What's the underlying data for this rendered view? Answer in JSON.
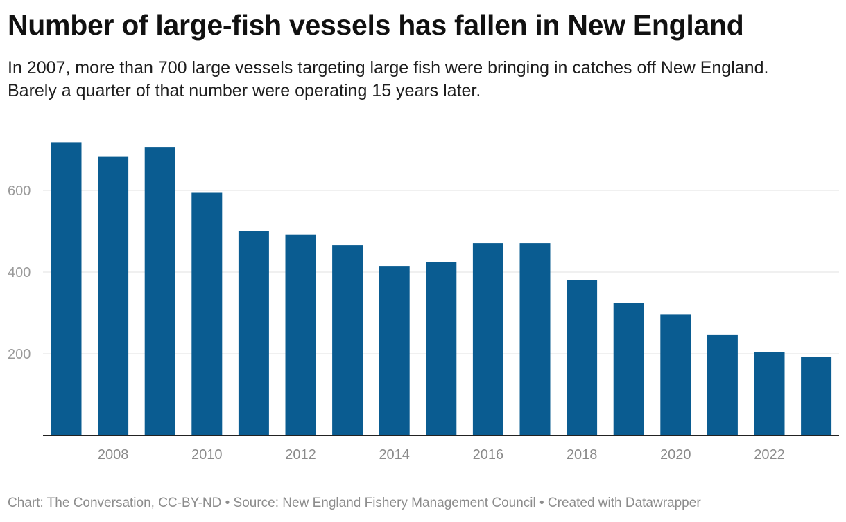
{
  "header": {
    "title": "Number of large-fish vessels has fallen in New England",
    "subtitle": "In 2007, more than 700 large vessels targeting large fish were bringing in catches off New England. Barely a quarter of that number were operating 15 years later."
  },
  "footer": {
    "credit": "Chart: The Conversation, CC-BY-ND • Source: New England Fishery Management Council • Created with Datawrapper"
  },
  "chart_data": {
    "type": "bar",
    "categories": [
      "2007",
      "2008",
      "2009",
      "2010",
      "2011",
      "2012",
      "2013",
      "2014",
      "2015",
      "2016",
      "2017",
      "2018",
      "2019",
      "2020",
      "2021",
      "2022",
      "2023"
    ],
    "values": [
      718,
      682,
      705,
      594,
      500,
      492,
      466,
      415,
      424,
      471,
      471,
      381,
      324,
      296,
      246,
      205,
      193
    ],
    "ylim": [
      0,
      720
    ],
    "yticks": [
      200,
      400,
      600
    ],
    "xticks": [
      "2008",
      "2010",
      "2012",
      "2014",
      "2016",
      "2018",
      "2020",
      "2022"
    ],
    "grid": true,
    "bar_color": "#0a5c91",
    "grid_color": "#e0e0e0",
    "axis_color": "#222222"
  }
}
